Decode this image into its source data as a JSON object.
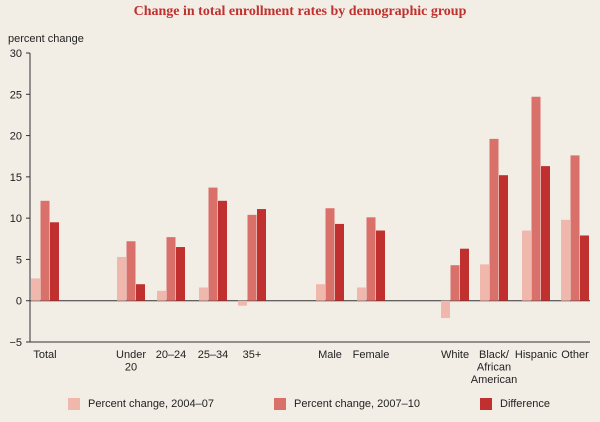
{
  "chart_data": {
    "type": "bar",
    "title": "Change in total enrollment rates by demographic group",
    "ylabel": "percent change",
    "xlabel": "",
    "ylim": [
      -5,
      30
    ],
    "yticks": [
      30,
      25,
      20,
      15,
      10,
      5,
      0,
      -5
    ],
    "grid": false,
    "legend_position": "bottom",
    "groups": [
      {
        "categories": [
          [
            "Total"
          ]
        ],
        "indices": [
          0
        ]
      },
      {
        "categories": [
          [
            "Under",
            "20"
          ],
          [
            "20–24"
          ],
          [
            "25–34"
          ],
          [
            "35+"
          ]
        ],
        "indices": [
          1,
          2,
          3,
          4
        ]
      },
      {
        "categories": [
          [
            "Male"
          ],
          [
            "Female"
          ]
        ],
        "indices": [
          5,
          6
        ]
      },
      {
        "categories": [
          [
            "White"
          ],
          [
            "Black/",
            "African",
            "American"
          ],
          [
            "Hispanic"
          ],
          [
            "Other"
          ]
        ],
        "indices": [
          7,
          8,
          9,
          10
        ]
      }
    ],
    "categories": [
      "Total",
      "Under 20",
      "20–24",
      "25–34",
      "35+",
      "Male",
      "Female",
      "White",
      "Black/African American",
      "Hispanic",
      "Other"
    ],
    "series": [
      {
        "name": "Percent change, 2004–07",
        "color": "#f0b8ad",
        "values": [
          2.7,
          5.3,
          1.2,
          1.6,
          -0.6,
          2.0,
          1.6,
          -2.1,
          4.4,
          8.5,
          9.8
        ]
      },
      {
        "name": "Percent change, 2007–10",
        "color": "#d9706a",
        "values": [
          12.1,
          7.2,
          7.7,
          13.7,
          10.4,
          11.2,
          10.1,
          4.3,
          19.6,
          24.7,
          17.6
        ]
      },
      {
        "name": "Difference",
        "color": "#c0302e",
        "values": [
          9.5,
          2.0,
          6.5,
          12.1,
          11.1,
          9.3,
          8.5,
          6.3,
          15.2,
          16.3,
          7.9
        ]
      }
    ]
  }
}
